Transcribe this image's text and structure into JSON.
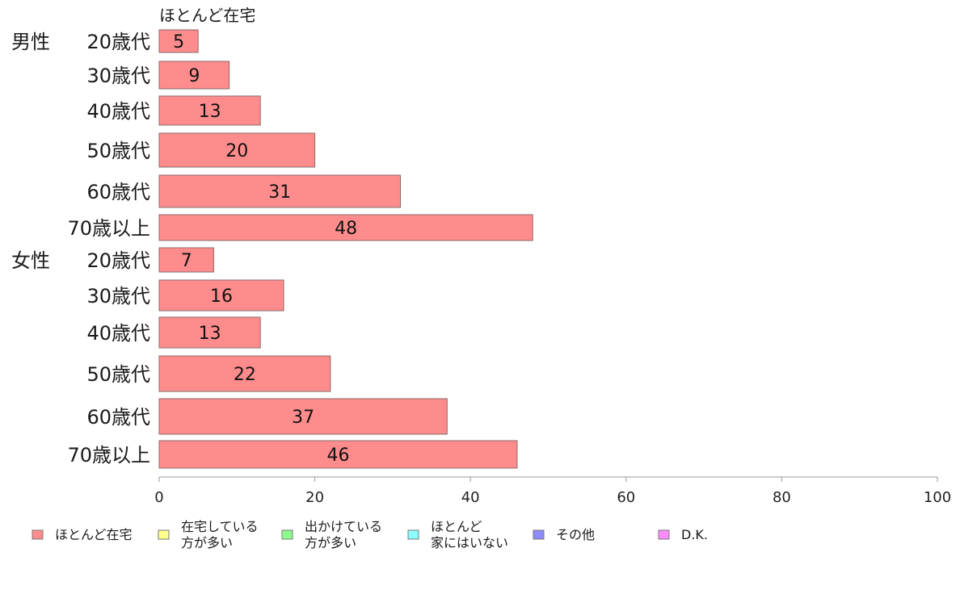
{
  "chart_data": {
    "type": "bar",
    "orientation": "horizontal",
    "series_top_label": "ほとんど在宅",
    "groups": [
      {
        "label": "男性",
        "start_index": 0
      },
      {
        "label": "女性",
        "start_index": 6
      }
    ],
    "categories": [
      "20歳代",
      "30歳代",
      "40歳代",
      "50歳代",
      "60歳代",
      "70歳以上",
      "20歳代",
      "30歳代",
      "40歳代",
      "50歳代",
      "60歳代",
      "70歳以上"
    ],
    "series": [
      {
        "name": "ほとんど在宅",
        "values": [
          5,
          9,
          13,
          20,
          31,
          48,
          7,
          16,
          13,
          22,
          37,
          46
        ]
      }
    ],
    "xlim": [
      0,
      100
    ],
    "xticks": [
      0,
      20,
      40,
      60,
      80,
      100
    ],
    "grid": false,
    "legend_position": "bottom",
    "legend": [
      {
        "lines": [
          "ほとんど在宅"
        ],
        "color": "#ff8c8c"
      },
      {
        "lines": [
          "在宅している",
          "方が多い"
        ],
        "color": "#ffff8c"
      },
      {
        "lines": [
          "出かけている",
          "方が多い"
        ],
        "color": "#8cff8c"
      },
      {
        "lines": [
          "ほとんど",
          "家にはいない"
        ],
        "color": "#8cffff"
      },
      {
        "lines": [
          "その他"
        ],
        "color": "#8c8cff"
      },
      {
        "lines": [
          "D.K."
        ],
        "color": "#ff8cff"
      }
    ],
    "colors": {
      "bar_fill": "#ff8c8c",
      "bar_stroke": "#8a6a6a",
      "axis": "#999999"
    }
  }
}
